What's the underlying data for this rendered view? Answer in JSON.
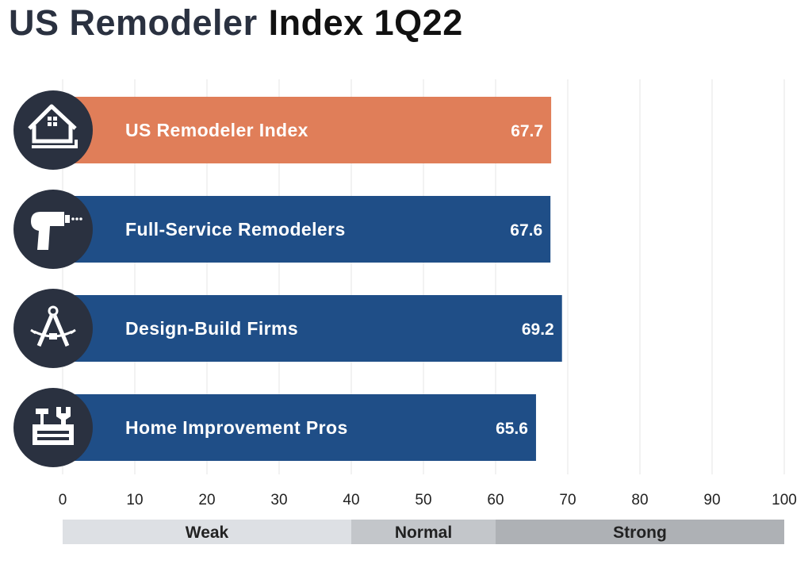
{
  "title": {
    "part1": "US Remodeler",
    "part2": "Index 1Q22"
  },
  "chart_data": {
    "type": "bar",
    "orientation": "horizontal",
    "categories": [
      "US Remodeler Index",
      "Full-Service Remodelers",
      "Design-Build Firms",
      "Home Improvement Pros"
    ],
    "values": [
      67.7,
      67.6,
      69.2,
      65.6
    ],
    "value_labels": [
      "67.7",
      "67.6",
      "69.2",
      "65.6"
    ],
    "icons": [
      "house-icon",
      "drill-icon",
      "compass-icon",
      "toolbox-icon"
    ],
    "bar_colors": [
      "#e07e59",
      "#1f4e87",
      "#1f4e87",
      "#1f4e87"
    ],
    "xlim": [
      0,
      100
    ],
    "xticks": [
      0,
      10,
      20,
      30,
      40,
      50,
      60,
      70,
      80,
      90,
      100
    ],
    "grid": true,
    "zones": [
      {
        "label": "Weak",
        "from": 0,
        "to": 40,
        "color": "#dde0e4"
      },
      {
        "label": "Normal",
        "from": 40,
        "to": 60,
        "color": "#c3c6ca"
      },
      {
        "label": "Strong",
        "from": 60,
        "to": 100,
        "color": "#aeb1b5"
      }
    ]
  },
  "colors": {
    "icon_circle": "#2a3140",
    "gridline": "#e6e6e6"
  }
}
